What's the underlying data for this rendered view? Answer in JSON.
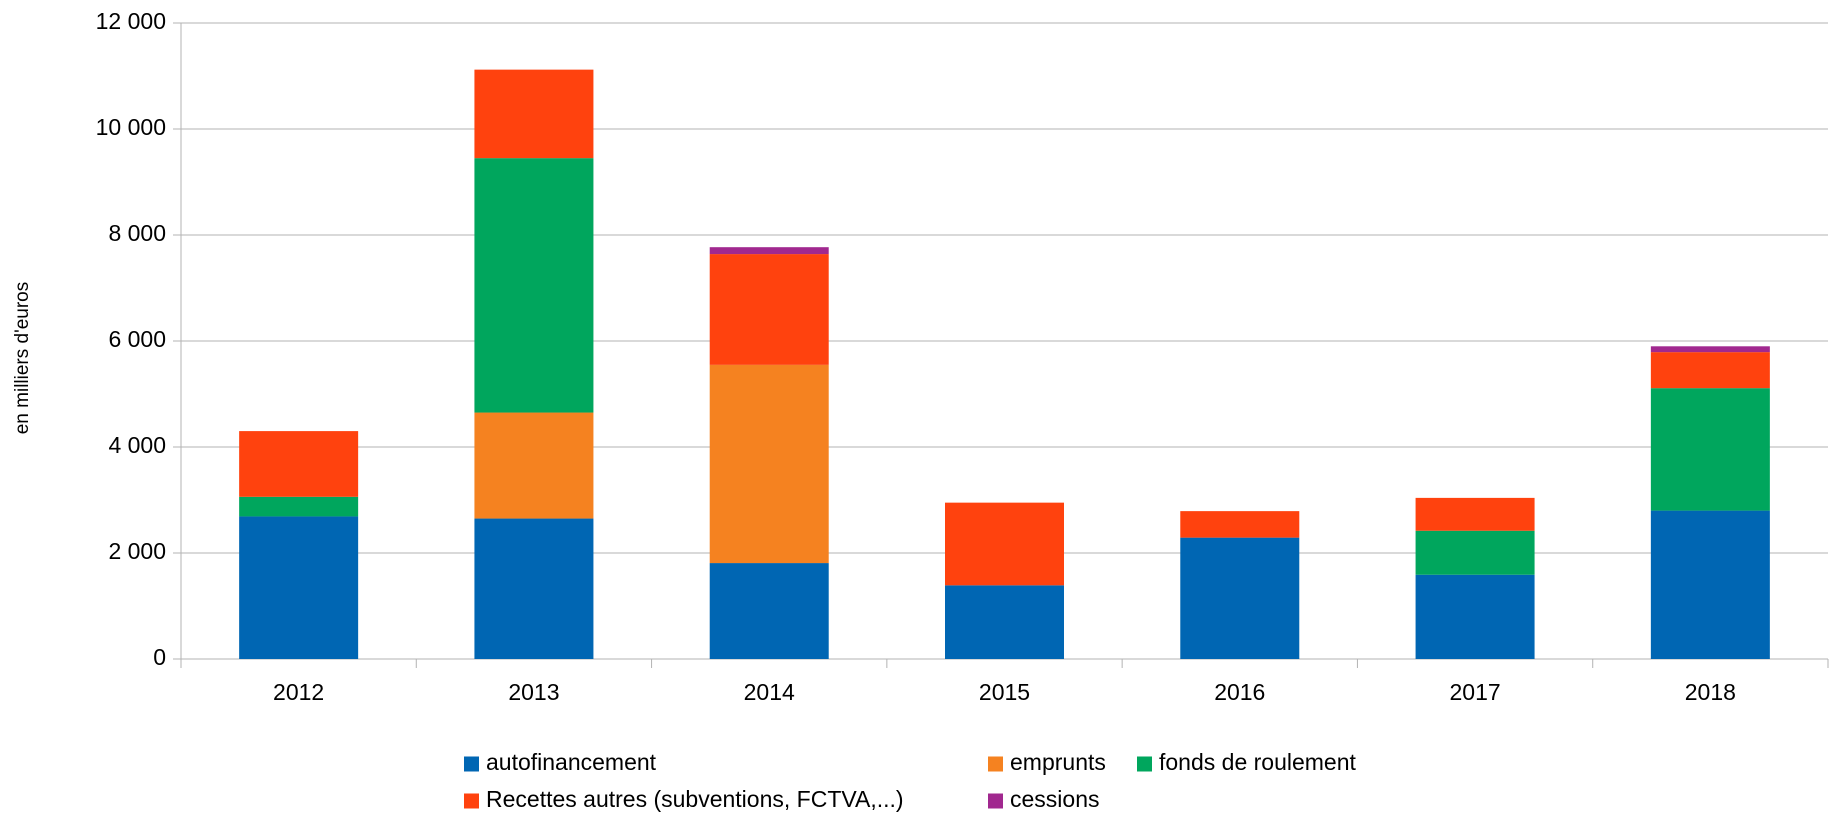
{
  "chart_data": {
    "type": "stacked_bar",
    "y_label": "en milliers d'euros",
    "categories": [
      "2012",
      "2013",
      "2014",
      "2015",
      "2016",
      "2017",
      "2018"
    ],
    "series": [
      {
        "name": "autofinancement",
        "color": "#0066b3",
        "values": [
          2690,
          2650,
          1810,
          1390,
          2290,
          1590,
          2800
        ]
      },
      {
        "name": "emprunts",
        "color": "#f58220",
        "values": [
          0,
          2000,
          3740,
          0,
          0,
          0,
          0
        ]
      },
      {
        "name": "fonds de roulement",
        "color": "#00a65d",
        "values": [
          370,
          4800,
          0,
          0,
          0,
          830,
          2310
        ]
      },
      {
        "name": "Recettes autres (subventions, FCTVA,...)",
        "color": "#ff420e",
        "values": [
          1240,
          1670,
          2090,
          1560,
          500,
          620,
          680
        ]
      },
      {
        "name": "cessions",
        "color": "#a1288f",
        "values": [
          0,
          0,
          130,
          0,
          0,
          0,
          110
        ]
      }
    ],
    "ylim": [
      0,
      12000
    ],
    "yticks": [
      0,
      {
        "value": 2000,
        "label": "2 000"
      },
      {
        "value": 4000,
        "label": "4 000"
      },
      {
        "value": 6000,
        "label": "6 000"
      },
      {
        "value": 8000,
        "label": "8 000"
      },
      {
        "value": 10000,
        "label": "10 000"
      },
      {
        "value": 12000,
        "label": "12 000"
      }
    ],
    "grid": true,
    "legend": "bottom"
  }
}
